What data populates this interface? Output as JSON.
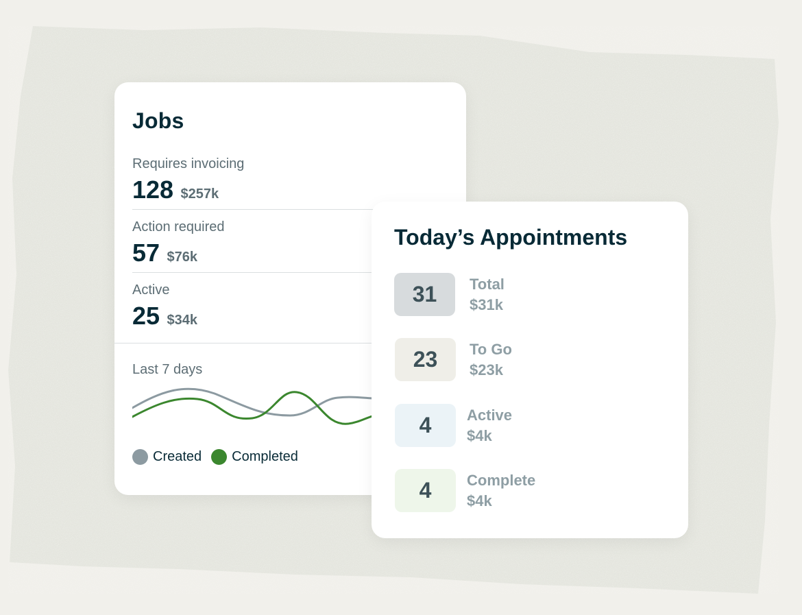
{
  "jobs": {
    "title": "Jobs",
    "metrics": [
      {
        "label": "Requires invoicing",
        "count": "128",
        "amount": "$257k"
      },
      {
        "label": "Action required",
        "count": "57",
        "amount": "$76k"
      },
      {
        "label": "Active",
        "count": "25",
        "amount": "$34k"
      }
    ],
    "chart_label": "Last 7 days",
    "legend": [
      {
        "label": "Created",
        "color": "#8c9aa1"
      },
      {
        "label": "Completed",
        "color": "#3b872e"
      }
    ]
  },
  "chart_data": {
    "type": "line",
    "title": "",
    "xlabel": "",
    "ylabel": "",
    "grid": false,
    "legend_placement": "bottom-left",
    "series": [
      {
        "name": "Created",
        "color": "#8c9aa1"
      },
      {
        "name": "Completed",
        "color": "#3b872e"
      }
    ]
  },
  "appointments": {
    "title": "Today’s Appointments",
    "rows": [
      {
        "count": "31",
        "label": "Total",
        "amount": "$31k",
        "badge_color": "#d7dbdd"
      },
      {
        "count": "23",
        "label": "To Go",
        "amount": "$23k",
        "badge_color": "#efeee8"
      },
      {
        "count": "4",
        "label": "Active",
        "amount": "$4k",
        "badge_color": "#ebf3f7"
      },
      {
        "count": "4",
        "label": "Complete",
        "amount": "$4k",
        "badge_color": "#eef6ea"
      }
    ]
  },
  "colors": {
    "background": "#f1f0eb",
    "texture": "#e6e7e0",
    "heading": "#082a36",
    "muted": "#5c6d74"
  }
}
